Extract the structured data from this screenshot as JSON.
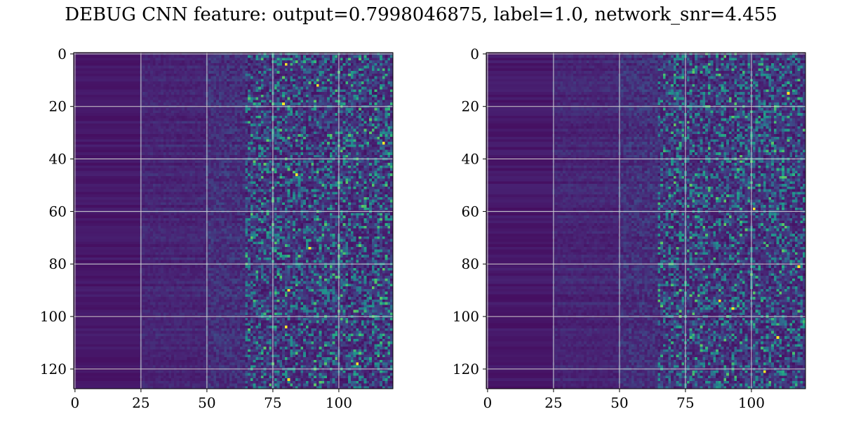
{
  "figure": {
    "title": "DEBUG CNN feature: output=0.7998046875, label=1.0, network_snr=4.455"
  },
  "chart_data": [
    {
      "type": "heatmap",
      "title": "",
      "xlabel": "",
      "ylabel": "",
      "x_ticks": [
        0,
        25,
        50,
        75,
        100
      ],
      "y_ticks": [
        0,
        20,
        40,
        60,
        80,
        100,
        120
      ],
      "xlim": [
        -0.5,
        120.5
      ],
      "ylim": [
        127.5,
        -0.5
      ],
      "rows": 128,
      "cols": 121,
      "colormap": "viridis",
      "grid": true,
      "seed": 17,
      "bright_points": [
        [
          80,
          4
        ],
        [
          92,
          12
        ],
        [
          117,
          34
        ],
        [
          79,
          19
        ],
        [
          89,
          74
        ],
        [
          81,
          90
        ],
        [
          80,
          104
        ],
        [
          81,
          124
        ],
        [
          84,
          46
        ],
        [
          107,
          118
        ]
      ]
    },
    {
      "type": "heatmap",
      "title": "",
      "xlabel": "",
      "ylabel": "",
      "x_ticks": [
        0,
        25,
        50,
        75,
        100
      ],
      "y_ticks": [
        0,
        20,
        40,
        60,
        80,
        100,
        120
      ],
      "xlim": [
        -0.5,
        120.5
      ],
      "ylim": [
        127.5,
        -0.5
      ],
      "rows": 128,
      "cols": 121,
      "colormap": "viridis",
      "grid": true,
      "seed": 53,
      "bright_points": [
        [
          101,
          59
        ],
        [
          114,
          15
        ],
        [
          118,
          81
        ],
        [
          88,
          94
        ],
        [
          105,
          121
        ],
        [
          93,
          97
        ],
        [
          110,
          108
        ]
      ]
    }
  ]
}
